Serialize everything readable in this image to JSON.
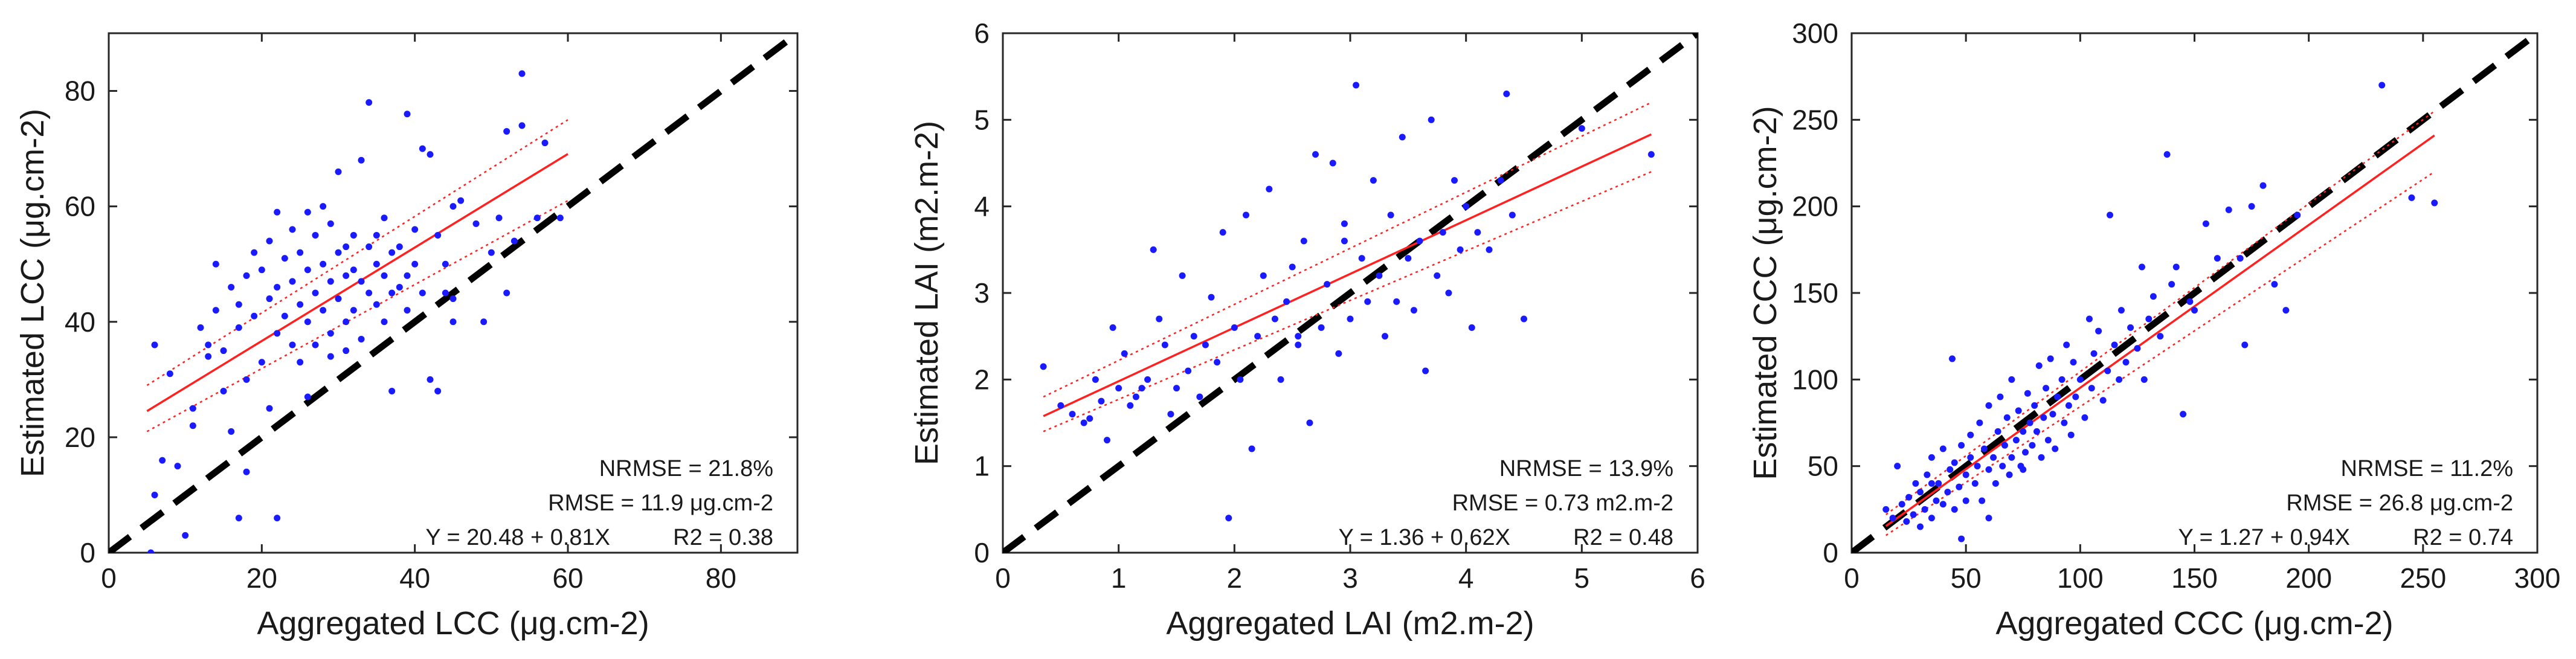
{
  "figure": {
    "panel_count": 3
  },
  "colors": {
    "points": "#1a1aff",
    "fit": "#ff2020",
    "identity": "#000000",
    "axes": "#262626",
    "text": "#1a1a1a"
  },
  "chart_data": [
    {
      "type": "scatter",
      "id": "lcc",
      "xlabel": "Aggregated LCC (μg.cm-2)",
      "ylabel": "Estimated LCC (μg.cm-2)",
      "xlim": [
        0,
        90
      ],
      "ylim": [
        0,
        90
      ],
      "xticks": [
        0,
        20,
        40,
        60,
        80
      ],
      "yticks": [
        0,
        20,
        40,
        60,
        80
      ],
      "xtick_labels": [
        "0",
        "20",
        "40",
        "60",
        "80"
      ],
      "ytick_labels": [
        "0",
        "20",
        "40",
        "60",
        "80"
      ],
      "identity_line": [
        [
          0,
          0
        ],
        [
          90,
          90
        ]
      ],
      "fit": {
        "intercept": 20.48,
        "slope": 0.81,
        "x_range": [
          5,
          60
        ]
      },
      "confidence_band": {
        "lower": [
          [
            5,
            21
          ],
          [
            60,
            61
          ]
        ],
        "upper": [
          [
            5,
            29
          ],
          [
            60,
            75
          ]
        ]
      },
      "annotation": {
        "nrmse": "NRMSE = 21.8%",
        "rmse": "RMSE = 11.9 μg.cm-2",
        "equation": "Y = 20.48 + 0.81X",
        "r2": "R2 = 0.38"
      },
      "points": [
        [
          5.5,
          0
        ],
        [
          6,
          36
        ],
        [
          6,
          10
        ],
        [
          7,
          16
        ],
        [
          8,
          31
        ],
        [
          9,
          15
        ],
        [
          10,
          3
        ],
        [
          11,
          22
        ],
        [
          11,
          25
        ],
        [
          12,
          39
        ],
        [
          13,
          34
        ],
        [
          13,
          36
        ],
        [
          14,
          42
        ],
        [
          15,
          28
        ],
        [
          15,
          35
        ],
        [
          16,
          21
        ],
        [
          16,
          46
        ],
        [
          17,
          6
        ],
        [
          17,
          39
        ],
        [
          17,
          43
        ],
        [
          18,
          14
        ],
        [
          18,
          30
        ],
        [
          18,
          48
        ],
        [
          19,
          52
        ],
        [
          19,
          41
        ],
        [
          20,
          33
        ],
        [
          20,
          49
        ],
        [
          21,
          25
        ],
        [
          21,
          44
        ],
        [
          21,
          54
        ],
        [
          22,
          38
        ],
        [
          22,
          46
        ],
        [
          22,
          59
        ],
        [
          22,
          6
        ],
        [
          23,
          51
        ],
        [
          23,
          41
        ],
        [
          24,
          47
        ],
        [
          24,
          36
        ],
        [
          24,
          56
        ],
        [
          25,
          43
        ],
        [
          25,
          52
        ],
        [
          25,
          33
        ],
        [
          26,
          49
        ],
        [
          26,
          59
        ],
        [
          26,
          40
        ],
        [
          27,
          45
        ],
        [
          27,
          55
        ],
        [
          27,
          36
        ],
        [
          28,
          50
        ],
        [
          28,
          60
        ],
        [
          28,
          42
        ],
        [
          29,
          47
        ],
        [
          29,
          38
        ],
        [
          29,
          57
        ],
        [
          30,
          44
        ],
        [
          30,
          52
        ],
        [
          30,
          66
        ],
        [
          31,
          48
        ],
        [
          31,
          40
        ],
        [
          31,
          35
        ],
        [
          32,
          55
        ],
        [
          32,
          42
        ],
        [
          32,
          49
        ],
        [
          33,
          68
        ],
        [
          33,
          47
        ],
        [
          33,
          37
        ],
        [
          34,
          78
        ],
        [
          34,
          53
        ],
        [
          34,
          45
        ],
        [
          35,
          50
        ],
        [
          35,
          43
        ],
        [
          35,
          55
        ],
        [
          36,
          48
        ],
        [
          36,
          40
        ],
        [
          36,
          58
        ],
        [
          37,
          45
        ],
        [
          37,
          52
        ],
        [
          38,
          46
        ],
        [
          38,
          53
        ],
        [
          39,
          76
        ],
        [
          39,
          42
        ],
        [
          39,
          48
        ],
        [
          40,
          50
        ],
        [
          40,
          56
        ],
        [
          41,
          70
        ],
        [
          41,
          45
        ],
        [
          42,
          69
        ],
        [
          42,
          30
        ],
        [
          43,
          28
        ],
        [
          43,
          55
        ],
        [
          44,
          45
        ],
        [
          44,
          50
        ],
        [
          45,
          44
        ],
        [
          45,
          60
        ],
        [
          46,
          61
        ],
        [
          48,
          57
        ],
        [
          49,
          40
        ],
        [
          50,
          52
        ],
        [
          51,
          58
        ],
        [
          52,
          73
        ],
        [
          52,
          45
        ],
        [
          53,
          54
        ],
        [
          54,
          83
        ],
        [
          54,
          74
        ],
        [
          56,
          58
        ],
        [
          57,
          71
        ],
        [
          59,
          58
        ],
        [
          26,
          27
        ],
        [
          29,
          34
        ],
        [
          37,
          28
        ],
        [
          14,
          50
        ],
        [
          31,
          53
        ],
        [
          45,
          40
        ]
      ]
    },
    {
      "type": "scatter",
      "id": "lai",
      "xlabel": "Aggregated LAI (m2.m-2)",
      "ylabel": "Estimated LAI (m2.m-2)",
      "xlim": [
        0,
        6
      ],
      "ylim": [
        0,
        6
      ],
      "xticks": [
        0,
        1,
        2,
        3,
        4,
        5,
        6
      ],
      "yticks": [
        0,
        1,
        2,
        3,
        4,
        5,
        6
      ],
      "xtick_labels": [
        "0",
        "1",
        "2",
        "3",
        "4",
        "5",
        "6"
      ],
      "ytick_labels": [
        "0",
        "1",
        "2",
        "3",
        "4",
        "5",
        "6"
      ],
      "identity_line": [
        [
          0,
          0
        ],
        [
          6,
          6
        ]
      ],
      "fit": {
        "intercept": 1.36,
        "slope": 0.62,
        "x_range": [
          0.35,
          5.6
        ]
      },
      "confidence_band": {
        "lower": [
          [
            0.35,
            1.4
          ],
          [
            5.6,
            4.4
          ]
        ],
        "upper": [
          [
            0.35,
            1.8
          ],
          [
            5.6,
            5.2
          ]
        ]
      },
      "annotation": {
        "nrmse": "NRMSE = 13.9%",
        "rmse": "RMSE = 0.73 m2.m-2",
        "equation": "Y = 1.36 + 0.62X",
        "r2": "R2 = 0.48"
      },
      "points": [
        [
          0.35,
          2.15
        ],
        [
          0.5,
          1.7
        ],
        [
          0.6,
          1.6
        ],
        [
          0.7,
          1.5
        ],
        [
          0.75,
          1.55
        ],
        [
          0.8,
          2.0
        ],
        [
          0.85,
          1.75
        ],
        [
          0.9,
          1.3
        ],
        [
          0.95,
          2.6
        ],
        [
          1.0,
          1.9
        ],
        [
          1.05,
          2.3
        ],
        [
          1.1,
          1.7
        ],
        [
          1.2,
          1.9
        ],
        [
          1.25,
          2.0
        ],
        [
          1.3,
          3.5
        ],
        [
          1.35,
          2.7
        ],
        [
          1.4,
          2.4
        ],
        [
          1.45,
          1.6
        ],
        [
          1.5,
          1.9
        ],
        [
          1.55,
          3.2
        ],
        [
          1.6,
          2.1
        ],
        [
          1.65,
          2.5
        ],
        [
          1.7,
          1.8
        ],
        [
          1.75,
          2.4
        ],
        [
          1.8,
          2.95
        ],
        [
          1.85,
          2.2
        ],
        [
          1.9,
          3.7
        ],
        [
          1.95,
          0.4
        ],
        [
          2.0,
          2.6
        ],
        [
          2.05,
          2.0
        ],
        [
          2.1,
          3.9
        ],
        [
          2.15,
          1.2
        ],
        [
          2.2,
          2.5
        ],
        [
          2.25,
          3.2
        ],
        [
          2.3,
          4.2
        ],
        [
          2.35,
          2.7
        ],
        [
          2.4,
          2.0
        ],
        [
          2.45,
          2.9
        ],
        [
          2.5,
          3.3
        ],
        [
          2.55,
          2.4
        ],
        [
          2.6,
          3.6
        ],
        [
          2.65,
          1.5
        ],
        [
          2.7,
          4.6
        ],
        [
          2.75,
          2.6
        ],
        [
          2.8,
          3.1
        ],
        [
          2.85,
          4.5
        ],
        [
          2.9,
          2.3
        ],
        [
          2.95,
          3.8
        ],
        [
          3.0,
          2.7
        ],
        [
          3.05,
          5.4
        ],
        [
          3.1,
          3.4
        ],
        [
          3.15,
          2.9
        ],
        [
          3.2,
          4.3
        ],
        [
          3.25,
          3.2
        ],
        [
          3.3,
          2.5
        ],
        [
          3.35,
          3.9
        ],
        [
          3.4,
          2.9
        ],
        [
          3.45,
          4.8
        ],
        [
          3.5,
          3.4
        ],
        [
          3.55,
          2.8
        ],
        [
          3.6,
          3.6
        ],
        [
          3.65,
          2.1
        ],
        [
          3.7,
          5.0
        ],
        [
          3.75,
          3.2
        ],
        [
          3.8,
          3.7
        ],
        [
          3.85,
          3.0
        ],
        [
          3.9,
          4.3
        ],
        [
          3.95,
          3.5
        ],
        [
          4.0,
          4.0
        ],
        [
          4.05,
          2.6
        ],
        [
          4.1,
          3.7
        ],
        [
          4.2,
          3.5
        ],
        [
          4.3,
          4.3
        ],
        [
          4.35,
          5.3
        ],
        [
          4.4,
          3.9
        ],
        [
          4.5,
          2.7
        ],
        [
          5.0,
          4.9
        ],
        [
          5.6,
          4.6
        ],
        [
          2.95,
          3.6
        ],
        [
          1.15,
          1.8
        ],
        [
          2.55,
          2.5
        ]
      ]
    },
    {
      "type": "scatter",
      "id": "ccc",
      "xlabel": "Aggregated CCC (μg.cm-2)",
      "ylabel": "Estimated CCC (μg.cm-2)",
      "xlim": [
        0,
        300
      ],
      "ylim": [
        0,
        300
      ],
      "xticks": [
        0,
        50,
        100,
        150,
        200,
        250,
        300
      ],
      "yticks": [
        0,
        50,
        100,
        150,
        200,
        250,
        300
      ],
      "xtick_labels": [
        "0",
        "50",
        "100",
        "150",
        "200",
        "250",
        "300"
      ],
      "ytick_labels": [
        "0",
        "50",
        "100",
        "150",
        "200",
        "250",
        "300"
      ],
      "identity_line": [
        [
          0,
          0
        ],
        [
          300,
          300
        ]
      ],
      "fit": {
        "intercept": 1.27,
        "slope": 0.94,
        "x_range": [
          15,
          255
        ]
      },
      "confidence_band": {
        "lower": [
          [
            15,
            10
          ],
          [
            255,
            220
          ]
        ],
        "upper": [
          [
            15,
            22
          ],
          [
            255,
            255
          ]
        ]
      },
      "annotation": {
        "nrmse": "NRMSE = 11.2%",
        "rmse": "RMSE = 26.8 μg.cm-2",
        "equation": "Y = 1.27 + 0.94X",
        "r2": "R2 = 0.74"
      },
      "points": [
        [
          15,
          25
        ],
        [
          18,
          20
        ],
        [
          20,
          50
        ],
        [
          22,
          28
        ],
        [
          24,
          18
        ],
        [
          25,
          32
        ],
        [
          27,
          22
        ],
        [
          28,
          40
        ],
        [
          30,
          15
        ],
        [
          30,
          35
        ],
        [
          32,
          25
        ],
        [
          33,
          45
        ],
        [
          35,
          20
        ],
        [
          35,
          55
        ],
        [
          37,
          30
        ],
        [
          38,
          40
        ],
        [
          40,
          28
        ],
        [
          40,
          60
        ],
        [
          42,
          35
        ],
        [
          43,
          48
        ],
        [
          44,
          112
        ],
        [
          45,
          25
        ],
        [
          45,
          52
        ],
        [
          47,
          38
        ],
        [
          48,
          8
        ],
        [
          48,
          62
        ],
        [
          50,
          45
        ],
        [
          50,
          30
        ],
        [
          52,
          55
        ],
        [
          52,
          68
        ],
        [
          54,
          40
        ],
        [
          55,
          50
        ],
        [
          56,
          75
        ],
        [
          57,
          30
        ],
        [
          58,
          60
        ],
        [
          60,
          48
        ],
        [
          60,
          85
        ],
        [
          62,
          55
        ],
        [
          63,
          40
        ],
        [
          64,
          70
        ],
        [
          65,
          90
        ],
        [
          66,
          50
        ],
        [
          67,
          62
        ],
        [
          68,
          78
        ],
        [
          69,
          45
        ],
        [
          70,
          55
        ],
        [
          70,
          100
        ],
        [
          72,
          65
        ],
        [
          73,
          82
        ],
        [
          74,
          50
        ],
        [
          75,
          70
        ],
        [
          76,
          58
        ],
        [
          77,
          92
        ],
        [
          78,
          75
        ],
        [
          79,
          62
        ],
        [
          80,
          85
        ],
        [
          81,
          70
        ],
        [
          82,
          108
        ],
        [
          83,
          55
        ],
        [
          84,
          78
        ],
        [
          85,
          95
        ],
        [
          86,
          65
        ],
        [
          87,
          112
        ],
        [
          88,
          80
        ],
        [
          89,
          60
        ],
        [
          90,
          90
        ],
        [
          92,
          100
        ],
        [
          93,
          75
        ],
        [
          94,
          120
        ],
        [
          95,
          85
        ],
        [
          96,
          68
        ],
        [
          97,
          110
        ],
        [
          98,
          90
        ],
        [
          100,
          100
        ],
        [
          102,
          78
        ],
        [
          104,
          135
        ],
        [
          105,
          95
        ],
        [
          106,
          115
        ],
        [
          108,
          128
        ],
        [
          110,
          88
        ],
        [
          112,
          105
        ],
        [
          113,
          195
        ],
        [
          115,
          120
        ],
        [
          117,
          100
        ],
        [
          118,
          140
        ],
        [
          120,
          110
        ],
        [
          122,
          130
        ],
        [
          125,
          118
        ],
        [
          127,
          165
        ],
        [
          128,
          100
        ],
        [
          130,
          135
        ],
        [
          132,
          148
        ],
        [
          135,
          125
        ],
        [
          138,
          230
        ],
        [
          140,
          155
        ],
        [
          142,
          165
        ],
        [
          145,
          80
        ],
        [
          148,
          145
        ],
        [
          150,
          140
        ],
        [
          155,
          190
        ],
        [
          160,
          170
        ],
        [
          165,
          198
        ],
        [
          170,
          170
        ],
        [
          172,
          120
        ],
        [
          175,
          200
        ],
        [
          180,
          212
        ],
        [
          185,
          155
        ],
        [
          190,
          140
        ],
        [
          195,
          195
        ],
        [
          232,
          270
        ],
        [
          245,
          205
        ],
        [
          255,
          202
        ],
        [
          60,
          20
        ],
        [
          35,
          40
        ],
        [
          75,
          48
        ]
      ]
    }
  ]
}
